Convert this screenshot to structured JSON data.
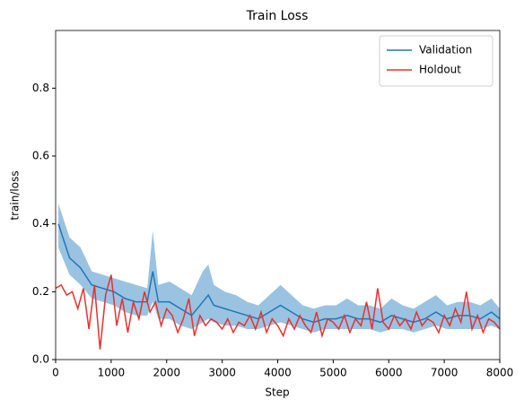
{
  "chart_data": {
    "type": "line",
    "title": "Train Loss",
    "xlabel": "Step",
    "ylabel": "train/loss",
    "xlim": [
      0,
      8000
    ],
    "xticks": [
      0,
      1000,
      2000,
      3000,
      4000,
      5000,
      6000,
      7000,
      8000
    ],
    "ylim": [
      0,
      0.97
    ],
    "yticks": [
      {
        "value": 0,
        "label": "0.0"
      },
      {
        "value": 0.2,
        "label": "0.2"
      },
      {
        "value": 0.4,
        "label": "0.4"
      },
      {
        "value": 0.6,
        "label": "0.6"
      },
      {
        "value": 0.8,
        "label": "0.8"
      }
    ],
    "legend": "upper right",
    "series": [
      {
        "name": "Validation",
        "color": "#1f77b4",
        "band_color": "#7fb4d9",
        "x": [
          50,
          250,
          450,
          650,
          850,
          1050,
          1250,
          1450,
          1650,
          1750,
          1850,
          2050,
          2250,
          2450,
          2650,
          2750,
          2850,
          3050,
          3250,
          3450,
          3650,
          3850,
          4050,
          4250,
          4450,
          4650,
          4850,
          5050,
          5250,
          5450,
          5650,
          5850,
          6050,
          6250,
          6450,
          6650,
          6850,
          7050,
          7250,
          7450,
          7650,
          7850,
          8000
        ],
        "values": [
          0.4,
          0.3,
          0.27,
          0.22,
          0.21,
          0.2,
          0.18,
          0.17,
          0.17,
          0.26,
          0.17,
          0.17,
          0.15,
          0.13,
          0.17,
          0.19,
          0.16,
          0.15,
          0.14,
          0.13,
          0.12,
          0.14,
          0.16,
          0.14,
          0.12,
          0.11,
          0.12,
          0.12,
          0.13,
          0.12,
          0.12,
          0.11,
          0.13,
          0.12,
          0.11,
          0.12,
          0.14,
          0.12,
          0.13,
          0.13,
          0.12,
          0.14,
          0.12
        ],
        "upper": [
          0.46,
          0.36,
          0.33,
          0.26,
          0.25,
          0.24,
          0.23,
          0.22,
          0.21,
          0.38,
          0.22,
          0.23,
          0.21,
          0.19,
          0.26,
          0.28,
          0.22,
          0.2,
          0.19,
          0.17,
          0.16,
          0.19,
          0.22,
          0.19,
          0.16,
          0.15,
          0.16,
          0.16,
          0.18,
          0.16,
          0.16,
          0.15,
          0.18,
          0.16,
          0.15,
          0.17,
          0.19,
          0.16,
          0.17,
          0.17,
          0.16,
          0.18,
          0.15
        ],
        "lower": [
          0.33,
          0.25,
          0.22,
          0.18,
          0.17,
          0.16,
          0.14,
          0.13,
          0.13,
          0.17,
          0.12,
          0.12,
          0.1,
          0.09,
          0.11,
          0.12,
          0.11,
          0.1,
          0.1,
          0.09,
          0.09,
          0.1,
          0.11,
          0.1,
          0.09,
          0.08,
          0.09,
          0.09,
          0.09,
          0.09,
          0.09,
          0.08,
          0.09,
          0.09,
          0.08,
          0.09,
          0.1,
          0.09,
          0.09,
          0.09,
          0.09,
          0.1,
          0.09
        ]
      },
      {
        "name": "Holdout",
        "color": "#e8302f",
        "x": [
          0,
          100,
          200,
          300,
          400,
          500,
          600,
          700,
          800,
          900,
          1000,
          1100,
          1200,
          1300,
          1400,
          1500,
          1600,
          1700,
          1800,
          1900,
          2000,
          2100,
          2200,
          2300,
          2400,
          2500,
          2600,
          2700,
          2800,
          2900,
          3000,
          3100,
          3200,
          3300,
          3400,
          3500,
          3600,
          3700,
          3800,
          3900,
          4000,
          4100,
          4200,
          4300,
          4400,
          4500,
          4600,
          4700,
          4800,
          4900,
          5000,
          5100,
          5200,
          5300,
          5400,
          5500,
          5600,
          5700,
          5800,
          5900,
          6000,
          6100,
          6200,
          6300,
          6400,
          6500,
          6600,
          6700,
          6800,
          6900,
          7000,
          7100,
          7200,
          7300,
          7400,
          7500,
          7600,
          7700,
          7800,
          7900,
          8000
        ],
        "values": [
          0.21,
          0.22,
          0.19,
          0.2,
          0.15,
          0.21,
          0.09,
          0.22,
          0.03,
          0.19,
          0.25,
          0.1,
          0.18,
          0.08,
          0.17,
          0.12,
          0.2,
          0.14,
          0.17,
          0.1,
          0.15,
          0.13,
          0.08,
          0.12,
          0.18,
          0.07,
          0.13,
          0.1,
          0.12,
          0.11,
          0.09,
          0.12,
          0.08,
          0.11,
          0.1,
          0.13,
          0.09,
          0.14,
          0.08,
          0.12,
          0.1,
          0.07,
          0.12,
          0.09,
          0.13,
          0.1,
          0.08,
          0.14,
          0.07,
          0.12,
          0.11,
          0.09,
          0.13,
          0.08,
          0.12,
          0.1,
          0.17,
          0.09,
          0.21,
          0.11,
          0.09,
          0.13,
          0.1,
          0.12,
          0.09,
          0.14,
          0.1,
          0.12,
          0.11,
          0.08,
          0.13,
          0.1,
          0.15,
          0.11,
          0.2,
          0.09,
          0.13,
          0.08,
          0.12,
          0.11,
          0.09
        ]
      }
    ]
  }
}
